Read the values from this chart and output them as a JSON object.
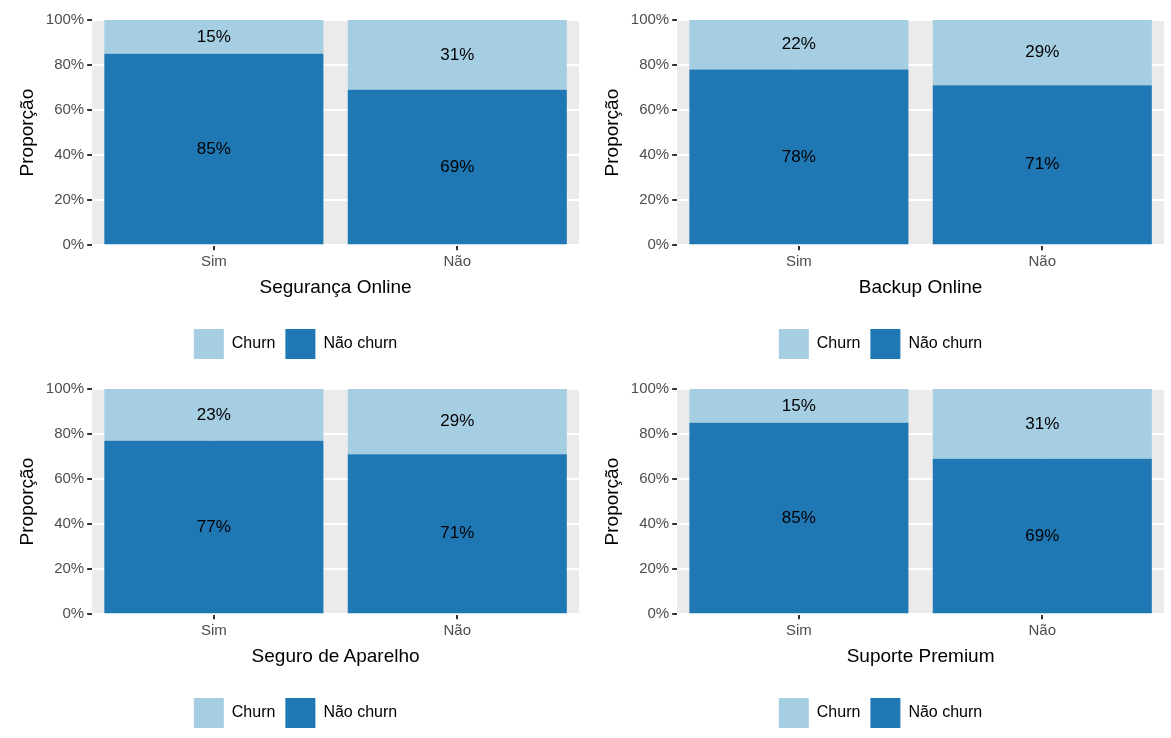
{
  "chart_data": [
    {
      "type": "bar",
      "stacked": true,
      "xlabel": "Segurança Online",
      "ylabel": "Proporção",
      "categories": [
        "Sim",
        "Não"
      ],
      "ylim": [
        0,
        100
      ],
      "yticks": [
        {
          "value": 0,
          "label": "0%"
        },
        {
          "value": 20,
          "label": "20%"
        },
        {
          "value": 40,
          "label": "40%"
        },
        {
          "value": 60,
          "label": "60%"
        },
        {
          "value": 80,
          "label": "80%"
        },
        {
          "value": 100,
          "label": "100%"
        }
      ],
      "grid": true,
      "legend": "bottom",
      "series": [
        {
          "name": "Não churn",
          "color": "#1f78b4",
          "values": [
            85,
            69
          ],
          "value_labels": [
            "85%",
            "69%"
          ]
        },
        {
          "name": "Churn",
          "color": "#a6cee3",
          "values": [
            15,
            31
          ],
          "value_labels": [
            "15%",
            "31%"
          ]
        }
      ]
    },
    {
      "type": "bar",
      "stacked": true,
      "xlabel": "Backup Online",
      "ylabel": "Proporção",
      "categories": [
        "Sim",
        "Não"
      ],
      "ylim": [
        0,
        100
      ],
      "yticks": [
        {
          "value": 0,
          "label": "0%"
        },
        {
          "value": 20,
          "label": "20%"
        },
        {
          "value": 40,
          "label": "40%"
        },
        {
          "value": 60,
          "label": "60%"
        },
        {
          "value": 80,
          "label": "80%"
        },
        {
          "value": 100,
          "label": "100%"
        }
      ],
      "grid": true,
      "legend": "bottom",
      "series": [
        {
          "name": "Não churn",
          "color": "#1f78b4",
          "values": [
            78,
            71
          ],
          "value_labels": [
            "78%",
            "71%"
          ]
        },
        {
          "name": "Churn",
          "color": "#a6cee3",
          "values": [
            22,
            29
          ],
          "value_labels": [
            "22%",
            "29%"
          ]
        }
      ]
    },
    {
      "type": "bar",
      "stacked": true,
      "xlabel": "Seguro de Aparelho",
      "ylabel": "Proporção",
      "categories": [
        "Sim",
        "Não"
      ],
      "ylim": [
        0,
        100
      ],
      "yticks": [
        {
          "value": 0,
          "label": "0%"
        },
        {
          "value": 20,
          "label": "20%"
        },
        {
          "value": 40,
          "label": "40%"
        },
        {
          "value": 60,
          "label": "60%"
        },
        {
          "value": 80,
          "label": "80%"
        },
        {
          "value": 100,
          "label": "100%"
        }
      ],
      "grid": true,
      "legend": "bottom",
      "series": [
        {
          "name": "Não churn",
          "color": "#1f78b4",
          "values": [
            77,
            71
          ],
          "value_labels": [
            "77%",
            "71%"
          ]
        },
        {
          "name": "Churn",
          "color": "#a6cee3",
          "values": [
            23,
            29
          ],
          "value_labels": [
            "23%",
            "29%"
          ]
        }
      ]
    },
    {
      "type": "bar",
      "stacked": true,
      "xlabel": "Suporte Premium",
      "ylabel": "Proporção",
      "categories": [
        "Sim",
        "Não"
      ],
      "ylim": [
        0,
        100
      ],
      "yticks": [
        {
          "value": 0,
          "label": "0%"
        },
        {
          "value": 20,
          "label": "20%"
        },
        {
          "value": 40,
          "label": "40%"
        },
        {
          "value": 60,
          "label": "60%"
        },
        {
          "value": 80,
          "label": "80%"
        },
        {
          "value": 100,
          "label": "100%"
        }
      ],
      "grid": true,
      "legend": "bottom",
      "series": [
        {
          "name": "Não churn",
          "color": "#1f78b4",
          "values": [
            85,
            69
          ],
          "value_labels": [
            "85%",
            "69%"
          ]
        },
        {
          "name": "Churn",
          "color": "#a6cee3",
          "values": [
            15,
            31
          ],
          "value_labels": [
            "15%",
            "31%"
          ]
        }
      ]
    }
  ]
}
